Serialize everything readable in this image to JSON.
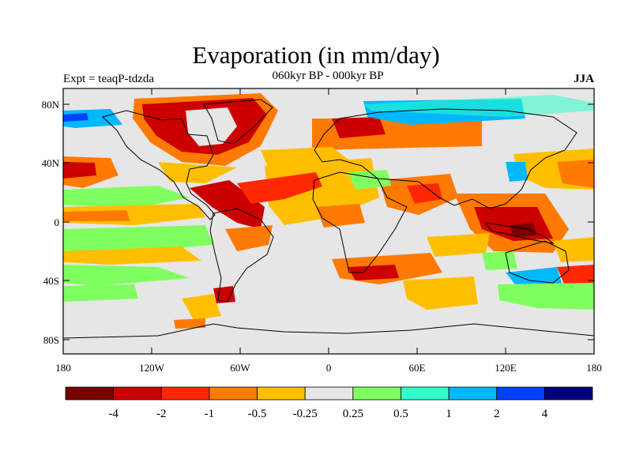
{
  "header": {
    "title": "Evaporation (in mm/day)",
    "experiment": "Expt = teaqP-tdzda",
    "period": "060kyr BP - 000kyr BP",
    "season": "JJA"
  },
  "map": {
    "type": "filled-contour-map",
    "background_color": "#e6e6e6",
    "lat_ticks": [
      "80N",
      "40N",
      "0",
      "40S",
      "80S"
    ],
    "lon_ticks": [
      "180",
      "120W",
      "60W",
      "0",
      "60E",
      "120E",
      "180"
    ]
  },
  "colorbar": {
    "colors": [
      "#7a0000",
      "#cc0000",
      "#ff2800",
      "#ff7a00",
      "#ffbf00",
      "#e6e6e6",
      "#80ff60",
      "#30ffc8",
      "#00b8ff",
      "#0040ff",
      "#000080"
    ],
    "labels": [
      "-4",
      "-2",
      "-1",
      "-0.5",
      "-0.25",
      "0.25",
      "0.5",
      "1",
      "2",
      "4"
    ]
  }
}
